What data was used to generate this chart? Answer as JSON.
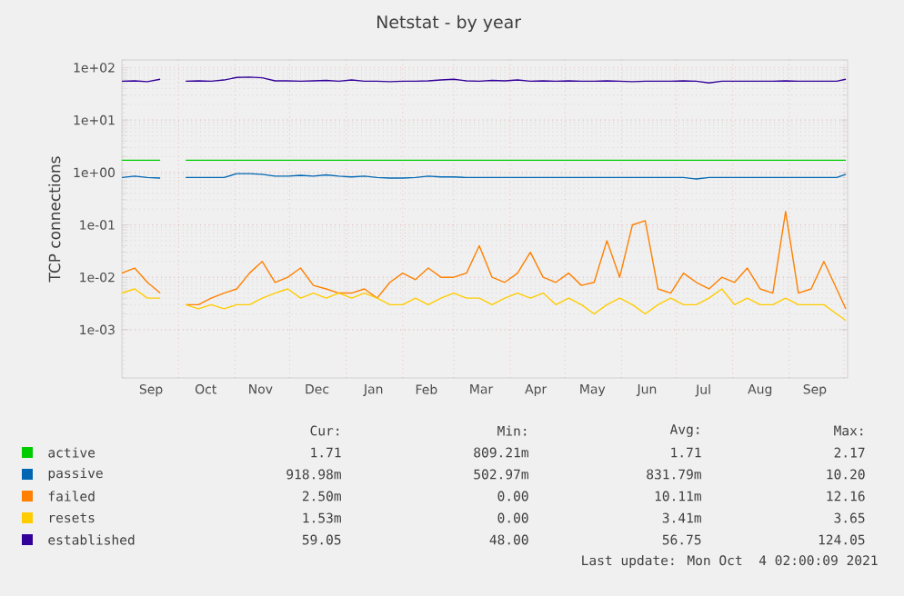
{
  "chart_data": {
    "type": "line",
    "title": "Netstat - by year",
    "ylabel": "TCP connections",
    "x": [
      "2020-08-31",
      "2020-09-07",
      "2020-09-14",
      "2020-09-21",
      "2020-09-28",
      "2020-10-05",
      "2020-10-12",
      "2020-10-19",
      "2020-10-26",
      "2020-11-02",
      "2020-11-09",
      "2020-11-16",
      "2020-11-23",
      "2020-11-30",
      "2020-12-07",
      "2020-12-14",
      "2020-12-21",
      "2020-12-28",
      "2021-01-04",
      "2021-01-11",
      "2021-01-18",
      "2021-01-25",
      "2021-02-01",
      "2021-02-08",
      "2021-02-15",
      "2021-02-22",
      "2021-03-01",
      "2021-03-08",
      "2021-03-15",
      "2021-03-22",
      "2021-03-29",
      "2021-04-05",
      "2021-04-12",
      "2021-04-19",
      "2021-04-26",
      "2021-05-03",
      "2021-05-10",
      "2021-05-17",
      "2021-05-24",
      "2021-05-31",
      "2021-06-07",
      "2021-06-14",
      "2021-06-21",
      "2021-06-28",
      "2021-07-05",
      "2021-07-12",
      "2021-07-19",
      "2021-07-26",
      "2021-08-02",
      "2021-08-09",
      "2021-08-16",
      "2021-08-23",
      "2021-08-30",
      "2021-09-06",
      "2021-09-13",
      "2021-09-20",
      "2021-09-27",
      "2021-10-02"
    ],
    "series": [
      {
        "name": "active",
        "color": "#00cc00",
        "values": [
          1.71,
          1.71,
          1.71,
          1.71,
          null,
          1.71,
          1.71,
          1.71,
          1.71,
          1.71,
          1.71,
          1.71,
          1.71,
          1.71,
          1.71,
          1.71,
          1.71,
          1.71,
          1.71,
          1.71,
          1.71,
          1.71,
          1.71,
          1.71,
          1.71,
          1.71,
          1.71,
          1.71,
          1.71,
          1.71,
          1.71,
          1.71,
          1.71,
          1.71,
          1.71,
          1.71,
          1.71,
          1.71,
          1.71,
          1.71,
          1.71,
          1.71,
          1.71,
          1.71,
          1.71,
          1.71,
          1.71,
          1.71,
          1.71,
          1.71,
          1.71,
          1.71,
          1.71,
          1.71,
          1.71,
          1.71,
          1.71,
          1.71
        ]
      },
      {
        "name": "passive",
        "color": "#0066b3",
        "values": [
          0.8,
          0.85,
          0.8,
          0.78,
          null,
          0.8,
          0.8,
          0.8,
          0.8,
          0.95,
          0.95,
          0.92,
          0.85,
          0.85,
          0.88,
          0.85,
          0.9,
          0.85,
          0.82,
          0.85,
          0.8,
          0.78,
          0.78,
          0.8,
          0.85,
          0.82,
          0.82,
          0.8,
          0.8,
          0.8,
          0.8,
          0.8,
          0.8,
          0.8,
          0.8,
          0.8,
          0.8,
          0.8,
          0.8,
          0.8,
          0.8,
          0.8,
          0.8,
          0.8,
          0.8,
          0.75,
          0.8,
          0.8,
          0.8,
          0.8,
          0.8,
          0.8,
          0.8,
          0.8,
          0.8,
          0.8,
          0.8,
          0.92
        ]
      },
      {
        "name": "failed",
        "color": "#ff8000",
        "values": [
          0.012,
          0.015,
          0.008,
          0.005,
          null,
          0.003,
          0.003,
          0.004,
          0.005,
          0.006,
          0.012,
          0.02,
          0.008,
          0.01,
          0.015,
          0.007,
          0.006,
          0.005,
          0.005,
          0.006,
          0.004,
          0.008,
          0.012,
          0.009,
          0.015,
          0.01,
          0.01,
          0.012,
          0.04,
          0.01,
          0.008,
          0.012,
          0.03,
          0.01,
          0.008,
          0.012,
          0.007,
          0.008,
          0.05,
          0.01,
          0.1,
          0.12,
          0.006,
          0.005,
          0.012,
          0.008,
          0.006,
          0.01,
          0.008,
          0.015,
          0.006,
          0.005,
          0.18,
          0.005,
          0.006,
          0.02,
          0.006,
          0.0025
        ]
      },
      {
        "name": "resets",
        "color": "#ffcc00",
        "values": [
          0.005,
          0.006,
          0.004,
          0.004,
          null,
          0.003,
          0.0025,
          0.003,
          0.0025,
          0.003,
          0.003,
          0.004,
          0.005,
          0.006,
          0.004,
          0.005,
          0.004,
          0.005,
          0.004,
          0.005,
          0.004,
          0.003,
          0.003,
          0.004,
          0.003,
          0.004,
          0.005,
          0.004,
          0.004,
          0.003,
          0.004,
          0.005,
          0.004,
          0.005,
          0.003,
          0.004,
          0.003,
          0.002,
          0.003,
          0.004,
          0.003,
          0.002,
          0.003,
          0.004,
          0.003,
          0.003,
          0.004,
          0.006,
          0.003,
          0.004,
          0.003,
          0.003,
          0.004,
          0.003,
          0.003,
          0.003,
          0.002,
          0.0015
        ]
      },
      {
        "name": "established",
        "color": "#330099",
        "values": [
          55,
          56,
          54,
          60,
          null,
          55,
          56,
          55,
          58,
          65,
          66,
          64,
          56,
          56,
          55,
          56,
          57,
          55,
          58,
          55,
          55,
          54,
          55,
          55,
          56,
          58,
          60,
          56,
          55,
          57,
          56,
          58,
          55,
          56,
          55,
          56,
          55,
          55,
          56,
          55,
          54,
          55,
          55,
          55,
          56,
          55,
          51,
          55,
          55,
          55,
          55,
          55,
          56,
          55,
          55,
          55,
          55,
          60
        ]
      }
    ],
    "xlim": [
      "2020-08-31",
      "2021-10-03"
    ],
    "xticks": [
      {
        "value": "2020-09-01",
        "label": null
      },
      {
        "value": "2020-10-01",
        "label": null
      },
      {
        "value": "2020-11-01",
        "label": null
      },
      {
        "value": "2020-12-01",
        "label": null
      },
      {
        "value": "2021-01-01",
        "label": null
      },
      {
        "value": "2021-02-01",
        "label": null
      },
      {
        "value": "2021-03-01",
        "label": null
      },
      {
        "value": "2021-04-01",
        "label": null
      },
      {
        "value": "2021-05-01",
        "label": null
      },
      {
        "value": "2021-06-01",
        "label": null
      },
      {
        "value": "2021-07-01",
        "label": null
      },
      {
        "value": "2021-08-01",
        "label": null
      },
      {
        "value": "2021-09-01",
        "label": null
      },
      {
        "value": "2021-10-01",
        "label": null
      },
      {
        "value": "2020-09-16",
        "label": "Sep"
      },
      {
        "value": "2020-10-16",
        "label": "Oct"
      },
      {
        "value": "2020-11-15",
        "label": "Nov"
      },
      {
        "value": "2020-12-16",
        "label": "Dec"
      },
      {
        "value": "2021-01-16",
        "label": "Jan"
      },
      {
        "value": "2021-02-14",
        "label": "Feb"
      },
      {
        "value": "2021-03-16",
        "label": "Mar"
      },
      {
        "value": "2021-04-15",
        "label": "Apr"
      },
      {
        "value": "2021-05-16",
        "label": "May"
      },
      {
        "value": "2021-06-15",
        "label": "Jun"
      },
      {
        "value": "2021-07-16",
        "label": "Jul"
      },
      {
        "value": "2021-08-16",
        "label": "Aug"
      },
      {
        "value": "2021-09-15",
        "label": "Sep"
      }
    ],
    "ylim": [
      0.00012,
      140
    ],
    "log": "y",
    "yticks": [
      {
        "value": 0.001,
        "label": "1e-03"
      },
      {
        "value": 0.01,
        "label": "1e-02"
      },
      {
        "value": 0.1,
        "label": "1e-01"
      },
      {
        "value": 1,
        "label": "1e+00"
      },
      {
        "value": 10,
        "label": "1e+01"
      },
      {
        "value": 100,
        "label": "1e+02"
      }
    ],
    "grid": true,
    "legend": "bottom",
    "annotations": [
      "Cur:",
      "Min:",
      "Avg:",
      "Max:",
      "1.71",
      "809.21m",
      "1.71",
      "2.17",
      "918.98m",
      "502.97m",
      "831.79m",
      "10.20",
      "2.50m",
      "0.00",
      "10.11m",
      "12.16",
      "1.53m",
      "0.00",
      "3.41m",
      "3.65",
      "59.05",
      "48.00",
      "56.75",
      "124.05",
      "Last update: Mon Oct  4 02:00:09 2021"
    ]
  }
}
